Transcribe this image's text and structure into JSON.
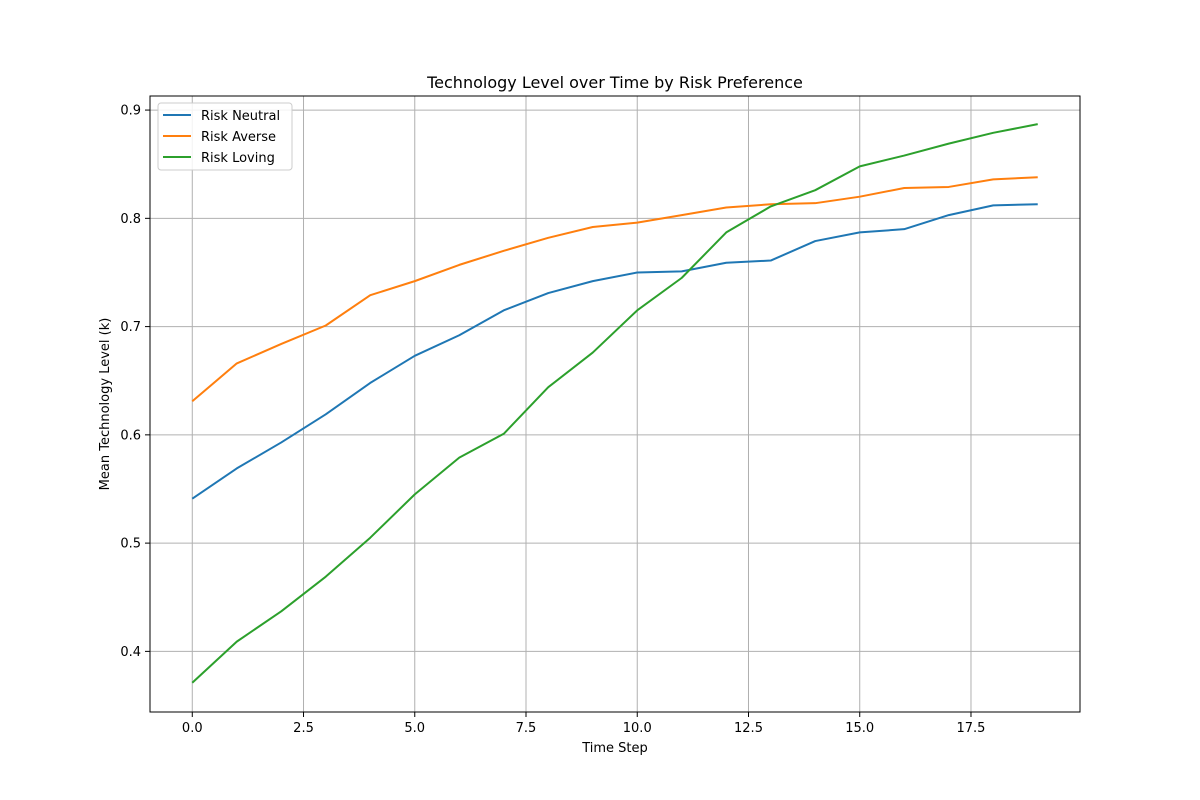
{
  "chart_data": {
    "type": "line",
    "title": "Technology Level over Time by Risk Preference",
    "xlabel": "Time Step",
    "ylabel": "Mean Technology Level (k)",
    "xlim": [
      -0.95,
      19.95
    ],
    "ylim": [
      0.344,
      0.913
    ],
    "xticks": [
      0.0,
      2.5,
      5.0,
      7.5,
      10.0,
      12.5,
      15.0,
      17.5
    ],
    "xtick_labels": [
      "0.0",
      "2.5",
      "5.0",
      "7.5",
      "10.0",
      "12.5",
      "15.0",
      "17.5"
    ],
    "yticks": [
      0.4,
      0.5,
      0.6,
      0.7,
      0.8,
      0.9
    ],
    "ytick_labels": [
      "0.4",
      "0.5",
      "0.6",
      "0.7",
      "0.8",
      "0.9"
    ],
    "grid": true,
    "legend_position": "top-left",
    "x": [
      0,
      1,
      2,
      3,
      4,
      5,
      6,
      7,
      8,
      9,
      10,
      11,
      12,
      13,
      14,
      15,
      16,
      17,
      18,
      19
    ],
    "series": [
      {
        "name": "Risk Neutral",
        "color": "#1f77b4",
        "values": [
          0.541,
          0.569,
          0.593,
          0.619,
          0.648,
          0.673,
          0.692,
          0.715,
          0.731,
          0.742,
          0.75,
          0.751,
          0.759,
          0.761,
          0.779,
          0.787,
          0.79,
          0.803,
          0.812,
          0.813
        ]
      },
      {
        "name": "Risk Averse",
        "color": "#ff7f0e",
        "values": [
          0.631,
          0.666,
          0.684,
          0.701,
          0.729,
          0.742,
          0.757,
          0.77,
          0.782,
          0.792,
          0.796,
          0.803,
          0.81,
          0.813,
          0.814,
          0.82,
          0.828,
          0.829,
          0.836,
          0.838
        ]
      },
      {
        "name": "Risk Loving",
        "color": "#2ca02c",
        "values": [
          0.371,
          0.409,
          0.437,
          0.469,
          0.505,
          0.545,
          0.579,
          0.601,
          0.644,
          0.676,
          0.715,
          0.745,
          0.787,
          0.811,
          0.826,
          0.848,
          0.858,
          0.869,
          0.879,
          0.887
        ]
      }
    ]
  }
}
